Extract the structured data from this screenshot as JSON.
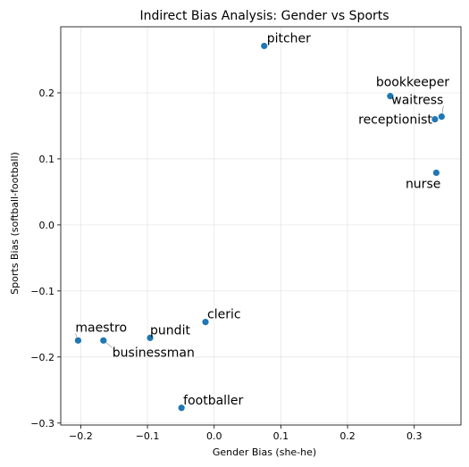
{
  "chart_data": {
    "type": "scatter",
    "title": "Indirect Bias Analysis: Gender vs Sports",
    "xlabel": "Gender Bias (she-he)",
    "ylabel": "Sports Bias (softball-football)",
    "xlim": [
      -0.23,
      0.37
    ],
    "ylim": [
      -0.303,
      0.3
    ],
    "xticks": [
      -0.2,
      -0.1,
      0.0,
      0.1,
      0.2,
      0.3
    ],
    "xtick_labels": [
      "−0.2",
      "−0.1",
      "0.0",
      "0.1",
      "0.2",
      "0.3"
    ],
    "yticks": [
      -0.3,
      -0.2,
      -0.1,
      0.0,
      0.1,
      0.2
    ],
    "ytick_labels": [
      "−0.3",
      "−0.2",
      "−0.1",
      "0.0",
      "0.1",
      "0.2"
    ],
    "grid": true,
    "marker_color": "#1f77b4",
    "points": [
      {
        "label": "pitcher",
        "x": 0.075,
        "y": 0.271
      },
      {
        "label": "bookkeeper",
        "x": 0.264,
        "y": 0.195
      },
      {
        "label": "waitress",
        "x": 0.341,
        "y": 0.164
      },
      {
        "label": "receptionist",
        "x": 0.331,
        "y": 0.16
      },
      {
        "label": "nurse",
        "x": 0.333,
        "y": 0.079
      },
      {
        "label": "cleric",
        "x": -0.013,
        "y": -0.147
      },
      {
        "label": "pundit",
        "x": -0.096,
        "y": -0.171
      },
      {
        "label": "maestro",
        "x": -0.204,
        "y": -0.175
      },
      {
        "label": "businessman",
        "x": -0.166,
        "y": -0.175
      },
      {
        "label": "footballer",
        "x": -0.049,
        "y": -0.277
      }
    ]
  }
}
